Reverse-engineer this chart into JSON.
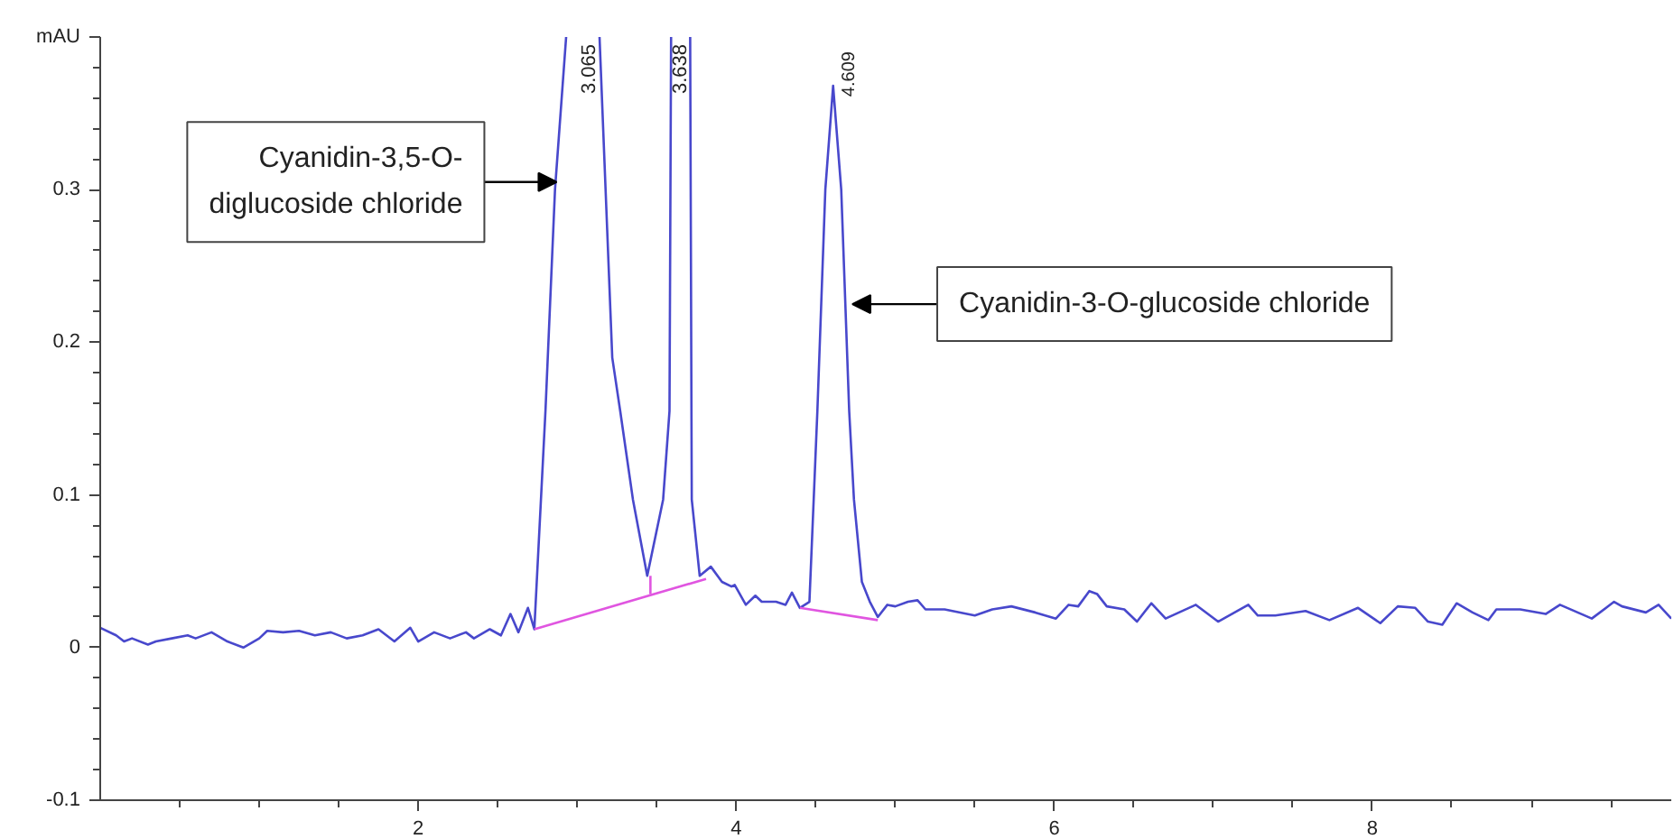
{
  "chart_data": {
    "type": "line",
    "x": [
      0.0,
      0.1,
      0.15,
      0.2,
      0.3,
      0.35,
      0.45,
      0.55,
      0.6,
      0.7,
      0.8,
      0.9,
      1.0,
      1.05,
      1.15,
      1.25,
      1.35,
      1.45,
      1.55,
      1.65,
      1.75,
      1.85,
      1.95,
      2.0,
      2.1,
      2.2,
      2.3,
      2.35,
      2.45,
      2.52,
      2.58,
      2.63,
      2.69,
      2.73,
      2.8,
      2.86,
      2.93,
      3.065,
      3.14,
      3.22,
      3.27,
      3.35,
      3.44,
      3.54,
      3.58,
      3.59,
      3.638,
      3.71,
      3.72,
      3.77,
      3.84,
      3.91,
      3.97,
      3.99,
      4.06,
      4.12,
      4.16,
      4.25,
      4.31,
      4.35,
      4.4,
      4.46,
      4.51,
      4.56,
      4.609,
      4.66,
      4.71,
      4.74,
      4.79,
      4.84,
      4.89,
      4.95,
      5.0,
      5.08,
      5.14,
      5.19,
      5.31,
      5.5,
      5.61,
      5.73,
      5.88,
      6.01,
      6.09,
      6.15,
      6.22,
      6.27,
      6.33,
      6.44,
      6.52,
      6.61,
      6.7,
      6.89,
      7.03,
      7.22,
      7.28,
      7.39,
      7.58,
      7.73,
      7.91,
      8.05,
      8.16,
      8.27,
      8.35,
      8.44,
      8.53,
      8.63,
      8.73,
      8.78,
      8.93,
      9.09,
      9.18,
      9.38,
      9.52,
      9.57,
      9.72,
      9.8,
      9.88
    ],
    "series": [
      {
        "color": "#4848cc",
        "values": [
          0.013,
          0.008,
          0.004,
          0.006,
          0.002,
          0.004,
          0.006,
          0.008,
          0.006,
          0.01,
          0.004,
          0.0,
          0.006,
          0.011,
          0.01,
          0.011,
          0.008,
          0.01,
          0.006,
          0.008,
          0.012,
          0.004,
          0.013,
          0.004,
          0.01,
          0.006,
          0.01,
          0.006,
          0.012,
          0.008,
          0.022,
          0.01,
          0.026,
          0.012,
          0.155,
          0.3,
          0.4,
          null,
          0.4,
          0.19,
          0.155,
          0.097,
          0.047,
          0.097,
          0.155,
          0.4,
          null,
          0.4,
          0.097,
          0.047,
          0.053,
          0.043,
          0.04,
          0.041,
          0.028,
          0.034,
          0.03,
          0.03,
          0.028,
          0.036,
          0.026,
          0.03,
          0.155,
          0.3,
          0.368,
          0.3,
          0.155,
          0.097,
          0.043,
          0.03,
          0.02,
          0.028,
          0.027,
          0.03,
          0.031,
          0.025,
          0.025,
          0.021,
          0.025,
          0.027,
          0.023,
          0.019,
          0.028,
          0.027,
          0.037,
          0.035,
          0.027,
          0.025,
          0.017,
          0.029,
          0.019,
          0.028,
          0.017,
          0.028,
          0.021,
          0.021,
          0.024,
          0.018,
          0.026,
          0.016,
          0.027,
          0.026,
          0.017,
          0.015,
          0.029,
          0.023,
          0.018,
          0.025,
          0.025,
          0.022,
          0.028,
          0.019,
          0.03,
          0.027,
          0.023,
          0.028,
          0.019
        ]
      },
      {
        "color": "#e055e0",
        "x": [
          2.73,
          3.81
        ],
        "values": [
          0.012,
          0.045
        ]
      },
      {
        "color": "#e055e0",
        "x": [
          3.46,
          3.46
        ],
        "values": [
          0.047,
          0.035
        ]
      },
      {
        "color": "#e055e0",
        "x": [
          4.4,
          4.89
        ],
        "values": [
          0.026,
          0.018
        ]
      }
    ],
    "xlim": [
      0,
      9.88
    ],
    "xticks": [
      {
        "value": 0.5,
        "label": null
      },
      {
        "value": 1,
        "label": null
      },
      {
        "value": 1.5,
        "label": null
      },
      2,
      {
        "value": 2.5,
        "label": null
      },
      {
        "value": 3,
        "label": null
      },
      {
        "value": 3.5,
        "label": null
      },
      4,
      {
        "value": 4.5,
        "label": null
      },
      {
        "value": 5,
        "label": null
      },
      {
        "value": 5.5,
        "label": null
      },
      6,
      {
        "value": 6.5,
        "label": null
      },
      {
        "value": 7,
        "label": null
      },
      {
        "value": 7.5,
        "label": null
      },
      8,
      {
        "value": 8.5,
        "label": null
      },
      {
        "value": 9,
        "label": null
      },
      {
        "value": 9.5,
        "label": null
      }
    ],
    "ylim": [
      -0.1,
      0.4
    ],
    "yticks": [
      -0.1,
      {
        "value": -0.08,
        "label": null
      },
      {
        "value": -0.06,
        "label": null
      },
      {
        "value": -0.04,
        "label": null
      },
      {
        "value": -0.02,
        "label": null
      },
      0,
      {
        "value": 0.02,
        "label": null
      },
      {
        "value": 0.04,
        "label": null
      },
      {
        "value": 0.06,
        "label": null
      },
      {
        "value": 0.08,
        "label": null
      },
      0.1,
      {
        "value": 0.12,
        "label": null
      },
      {
        "value": 0.14,
        "label": null
      },
      {
        "value": 0.16,
        "label": null
      },
      {
        "value": 0.18,
        "label": null
      },
      0.2,
      {
        "value": 0.22,
        "label": null
      },
      {
        "value": 0.24,
        "label": null
      },
      {
        "value": 0.26,
        "label": null
      },
      {
        "value": 0.28,
        "label": null
      },
      0.3,
      {
        "value": 0.32,
        "label": null
      },
      {
        "value": 0.34,
        "label": null
      },
      {
        "value": 0.36,
        "label": null
      },
      {
        "value": 0.38,
        "label": null
      },
      {
        "value": 0.4,
        "label": "mAU"
      }
    ],
    "grid": false,
    "marker": "none",
    "line_style": "solid",
    "annotations": [
      "3.065",
      "3.638",
      {
        "text": "4.609",
        "x": 4.609,
        "y": 0.368
      },
      {
        "text": "Cyanidin-3,5-O-diglucoside chloride",
        "x": 2.87,
        "y": 0.305
      },
      {
        "text": "Cyanidin-3-O-glucoside chloride",
        "x": 4.73,
        "y": 0.225
      }
    ]
  }
}
